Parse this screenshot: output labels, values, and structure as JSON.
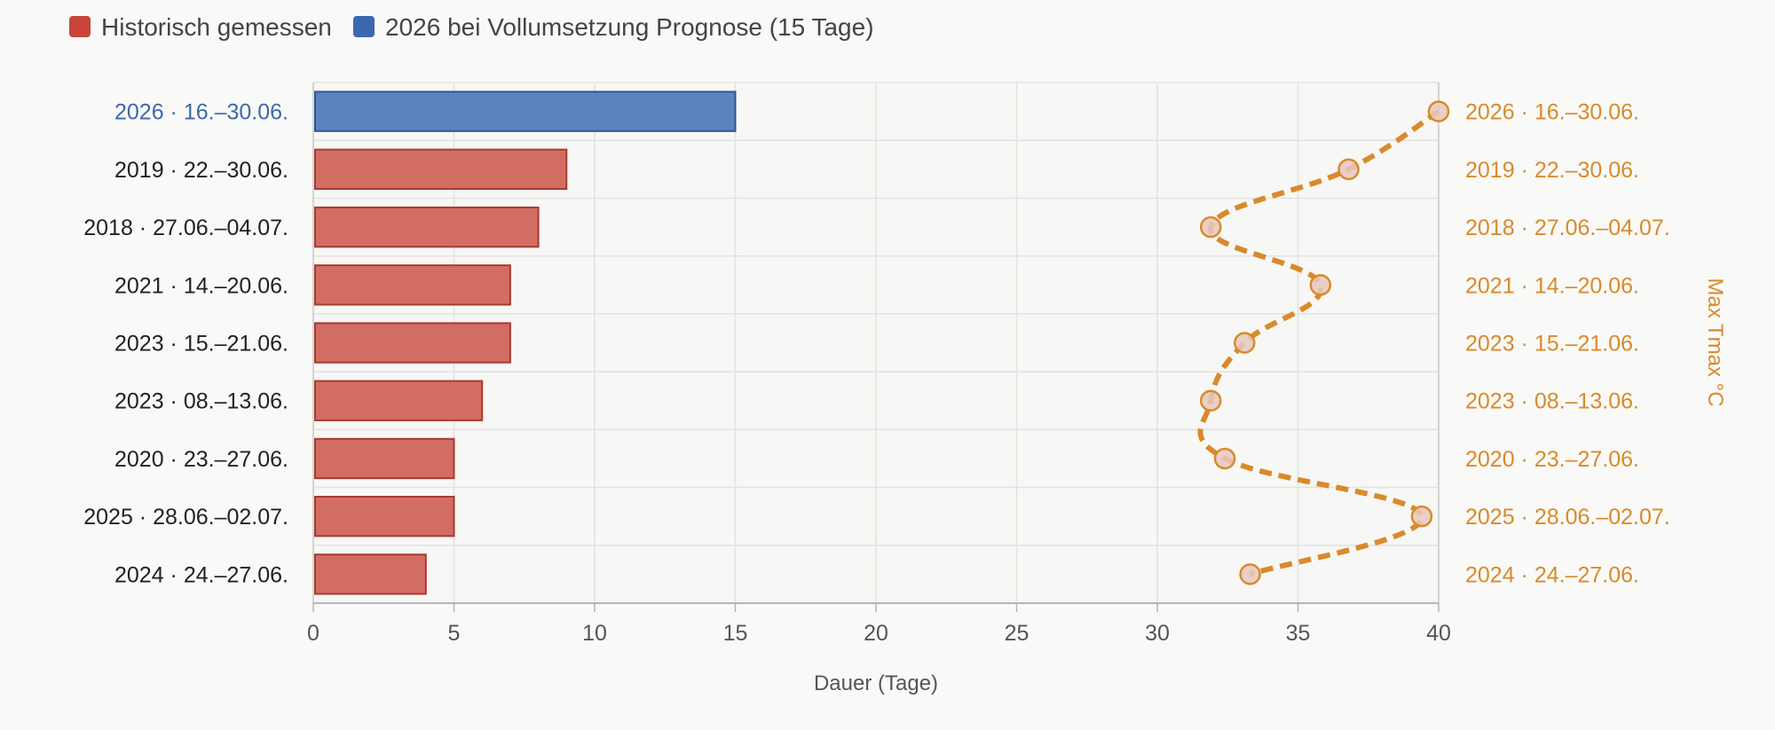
{
  "chart_data": {
    "type": "bar",
    "orientation": "horizontal",
    "legend": {
      "placement": "top-left",
      "items": [
        {
          "label": "Historisch gemessen",
          "color": "#c9453b"
        },
        {
          "label": "2026 bei Vollumsetzung Prognose (15 Tage)",
          "color": "#3c68b0"
        }
      ]
    },
    "categories": [
      "2026 · 16.–30.06.",
      "2019 · 22.–30.06.",
      "2018 · 27.06.–04.07.",
      "2021 · 14.–20.06.",
      "2023 · 15.–21.06.",
      "2023 · 08.–13.06.",
      "2020 · 23.–27.06.",
      "2025 · 28.06.–02.07.",
      "2024 · 24.–27.06."
    ],
    "series": [
      {
        "type": "bar",
        "values": [
          15,
          9,
          8,
          7,
          7,
          6,
          5,
          5,
          4
        ],
        "colors": [
          "#5b83bd",
          "#d26d63",
          "#d26d63",
          "#d26d63",
          "#d26d63",
          "#d26d63",
          "#d26d63",
          "#d26d63",
          "#d26d63"
        ],
        "border_colors": [
          "#2f5597",
          "#a83a31",
          "#a83a31",
          "#a83a31",
          "#a83a31",
          "#a83a31",
          "#a83a31",
          "#a83a31",
          "#a83a31"
        ]
      },
      {
        "type": "line",
        "style": "dashed",
        "color": "#d98a2b",
        "values": [
          40,
          36.8,
          31.9,
          35.8,
          33.1,
          31.9,
          32.4,
          39.4,
          33.3
        ]
      }
    ],
    "x_axis": {
      "label": "Dauer (Tage)",
      "range": [
        0,
        40
      ],
      "ticks": [
        "0",
        "5",
        "10",
        "15",
        "20",
        "25",
        "30",
        "35",
        "40"
      ]
    },
    "right_axis": {
      "label": "Max Tmax °C",
      "color": "#d98a2b"
    },
    "highlight_category_color": "#3c68b0",
    "grid": true
  }
}
